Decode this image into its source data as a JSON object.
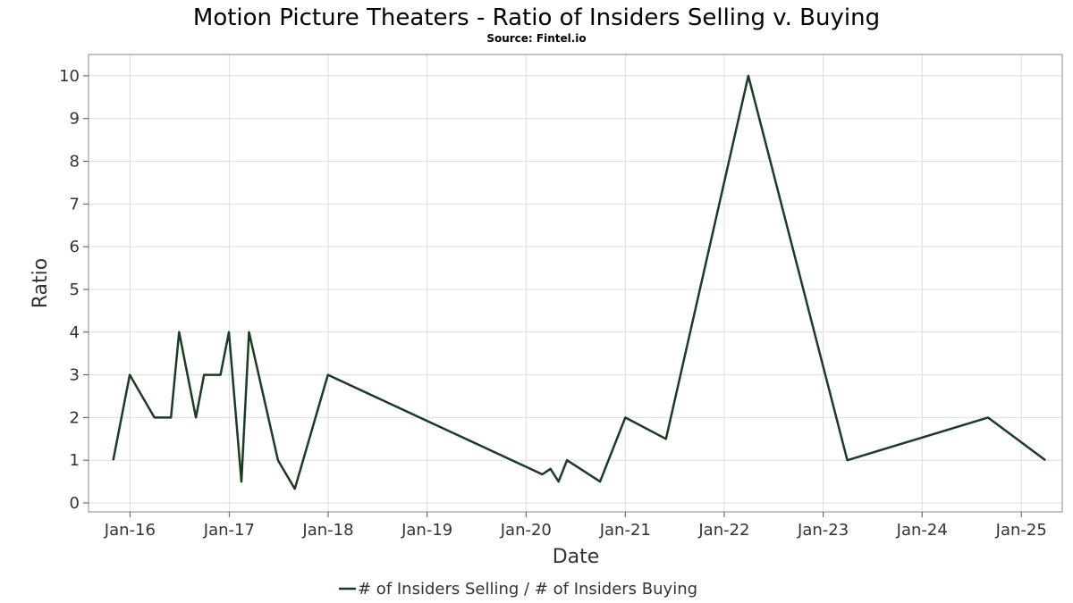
{
  "chart_data": {
    "type": "line",
    "title": "Motion Picture Theaters - Ratio of Insiders Selling v. Buying",
    "subtitle": "Source: Fintel.io",
    "xlabel": "Date",
    "ylabel": "Ratio",
    "x_range": [
      "2015-08-01",
      "2025-06-01"
    ],
    "ylim": [
      0,
      10.5
    ],
    "y_ticks": [
      0,
      1,
      2,
      3,
      4,
      5,
      6,
      7,
      8,
      9,
      10
    ],
    "x_ticks": [
      {
        "date": "2016-01-01",
        "label": "Jan-16"
      },
      {
        "date": "2017-01-01",
        "label": "Jan-17"
      },
      {
        "date": "2018-01-01",
        "label": "Jan-18"
      },
      {
        "date": "2019-01-01",
        "label": "Jan-19"
      },
      {
        "date": "2020-01-01",
        "label": "Jan-20"
      },
      {
        "date": "2021-01-01",
        "label": "Jan-21"
      },
      {
        "date": "2022-01-01",
        "label": "Jan-22"
      },
      {
        "date": "2023-01-01",
        "label": "Jan-23"
      },
      {
        "date": "2024-01-01",
        "label": "Jan-24"
      },
      {
        "date": "2025-01-01",
        "label": "Jan-25"
      }
    ],
    "grid": true,
    "legend_position": "bottom-center",
    "series": [
      {
        "name": "# of Insiders Selling / # of Insiders Buying",
        "color": "#1a3d22",
        "points": [
          {
            "x": "2015-10-31",
            "y": 1
          },
          {
            "x": "2015-12-31",
            "y": 3
          },
          {
            "x": "2016-03-31",
            "y": 2
          },
          {
            "x": "2016-05-31",
            "y": 2
          },
          {
            "x": "2016-06-30",
            "y": 4
          },
          {
            "x": "2016-08-31",
            "y": 2
          },
          {
            "x": "2016-09-30",
            "y": 3
          },
          {
            "x": "2016-11-30",
            "y": 3
          },
          {
            "x": "2016-12-31",
            "y": 4
          },
          {
            "x": "2017-02-15",
            "y": 0.5
          },
          {
            "x": "2017-03-15",
            "y": 4
          },
          {
            "x": "2017-06-30",
            "y": 1
          },
          {
            "x": "2017-08-31",
            "y": 0.33
          },
          {
            "x": "2017-12-31",
            "y": 3
          },
          {
            "x": "2020-03-01",
            "y": 0.67
          },
          {
            "x": "2020-03-31",
            "y": 0.8
          },
          {
            "x": "2020-04-30",
            "y": 0.5
          },
          {
            "x": "2020-05-31",
            "y": 1
          },
          {
            "x": "2020-09-30",
            "y": 0.5
          },
          {
            "x": "2021-01-01",
            "y": 2
          },
          {
            "x": "2021-05-31",
            "y": 1.5
          },
          {
            "x": "2022-03-31",
            "y": 10
          },
          {
            "x": "2023-03-31",
            "y": 1
          },
          {
            "x": "2024-08-31",
            "y": 2
          },
          {
            "x": "2025-03-31",
            "y": 1
          }
        ]
      }
    ]
  }
}
